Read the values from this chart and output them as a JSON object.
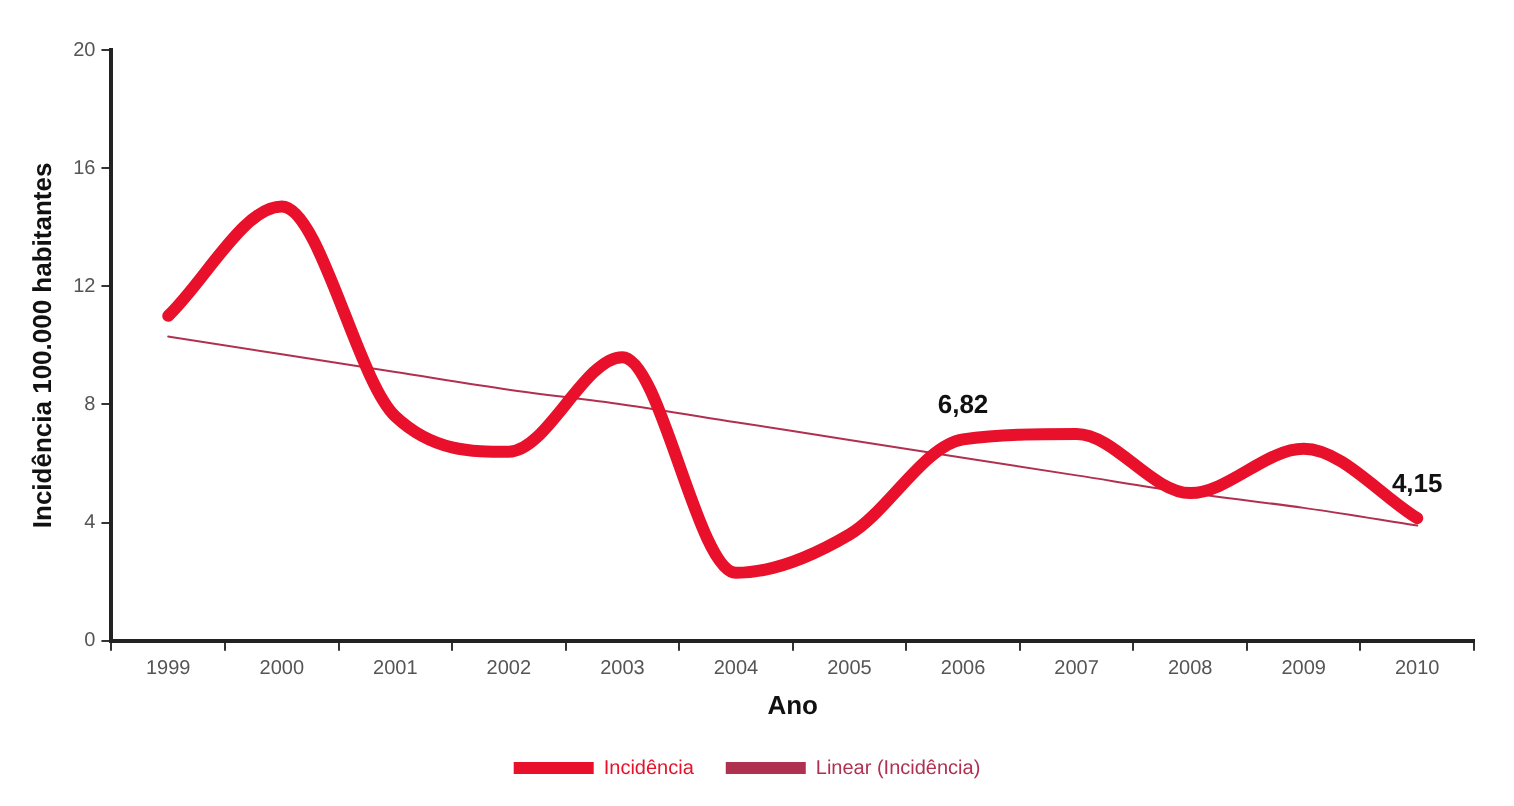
{
  "chart_data": {
    "type": "line",
    "xlabel": "Ano",
    "ylabel": "Incidência 100.000 habitantes",
    "categories": [
      "1999",
      "2000",
      "2001",
      "2002",
      "2003",
      "2004",
      "2005",
      "2006",
      "2007",
      "2008",
      "2009",
      "2010"
    ],
    "series": [
      {
        "name": "Incidência",
        "color": "#e8102a",
        "values": [
          11.0,
          14.7,
          7.6,
          6.4,
          9.6,
          2.3,
          3.6,
          6.82,
          7.0,
          5.0,
          6.5,
          4.15
        ],
        "value_labels": [
          null,
          null,
          null,
          null,
          null,
          null,
          null,
          "6,82",
          null,
          null,
          null,
          "4,15"
        ]
      },
      {
        "name": "Linear (Incidência)",
        "color": "#b03050",
        "values": [
          10.3,
          9.7,
          9.1,
          8.5,
          8.0,
          7.4,
          6.8,
          6.2,
          5.6,
          5.0,
          4.5,
          3.9
        ]
      }
    ],
    "ylim": [
      0,
      20
    ],
    "yticks": [
      0,
      4,
      8,
      12,
      16,
      20
    ],
    "grid": false,
    "legend": "bottom",
    "marker": "none",
    "line_style": "solid"
  }
}
